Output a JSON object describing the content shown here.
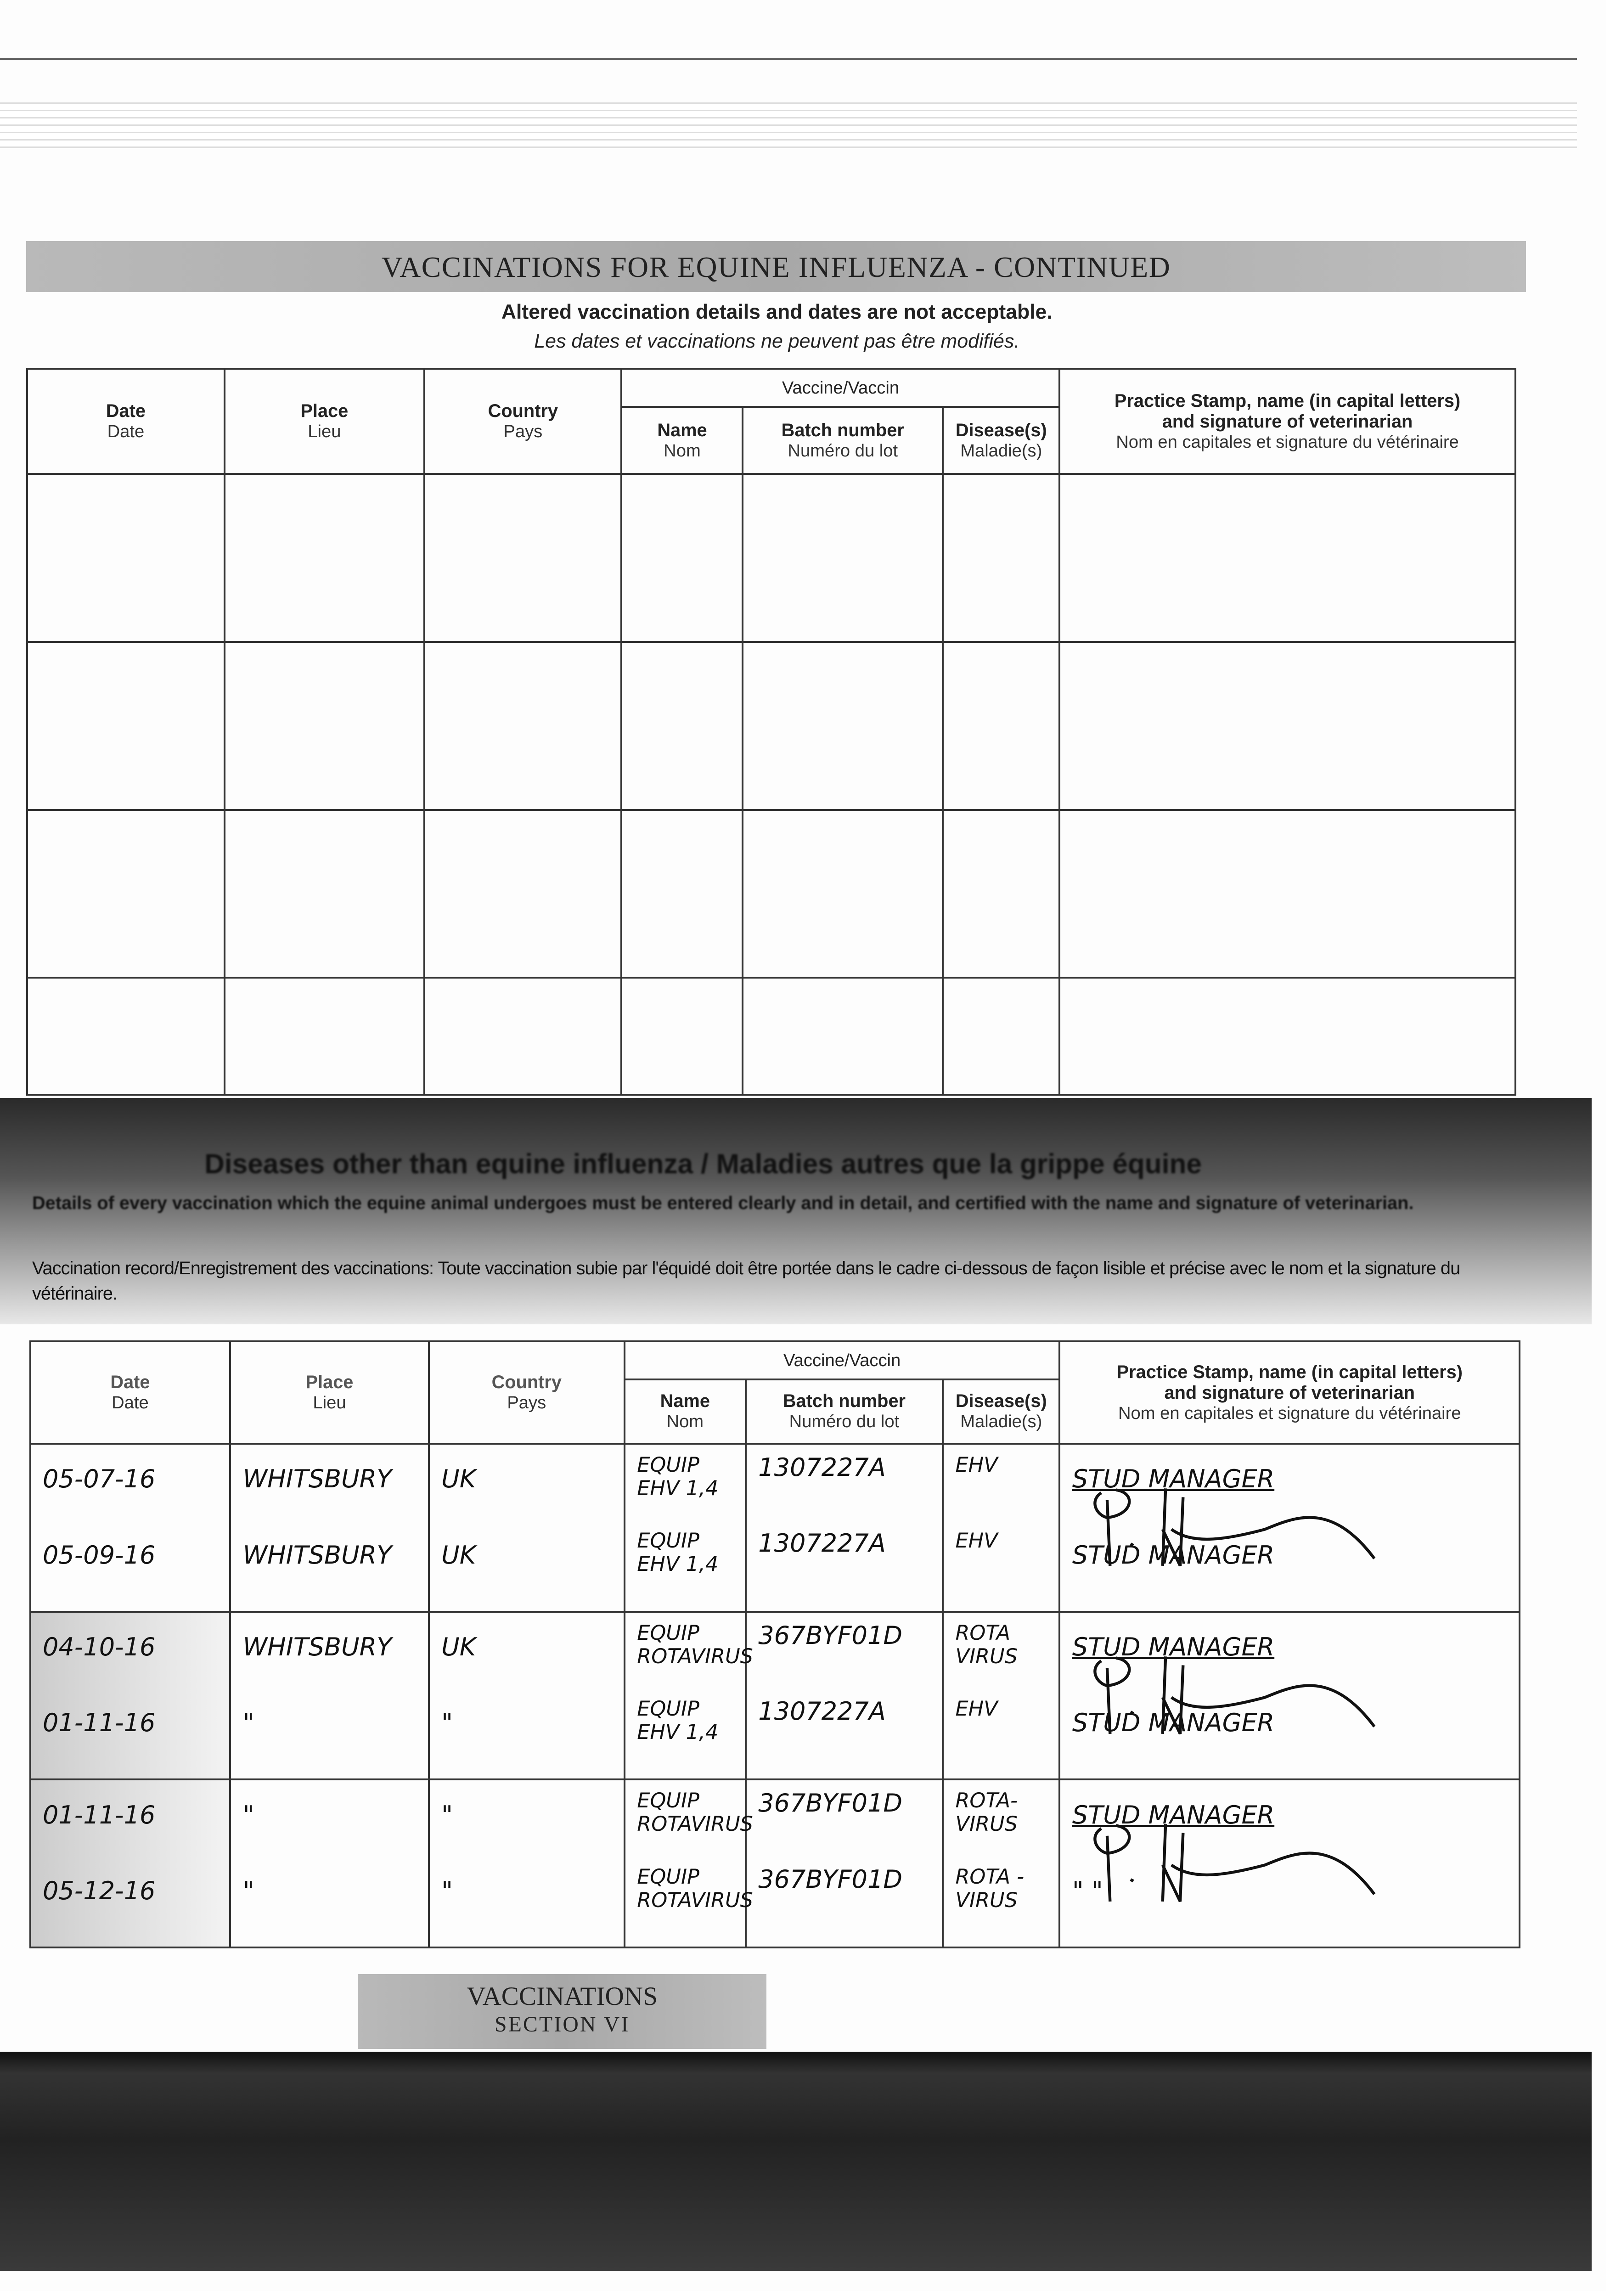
{
  "section_title": "VACCINATIONS FOR EQUINE INFLUENZA - CONTINUED",
  "notice_en": "Altered vaccination details and dates are not acceptable.",
  "notice_fr": "Les dates et vaccinations ne peuvent pas être modifiés.",
  "columns": {
    "date": {
      "en": "Date",
      "fr": "Date"
    },
    "place": {
      "en": "Place",
      "fr": "Lieu"
    },
    "country": {
      "en": "Country",
      "fr": "Pays"
    },
    "vaccine": "Vaccine/Vaccin",
    "name": {
      "en": "Name",
      "fr": "Nom"
    },
    "batch": {
      "en": "Batch number",
      "fr": "Numéro du lot"
    },
    "disease": {
      "en": "Disease(s)",
      "fr": "Maladie(s)"
    },
    "stamp": {
      "en1": "Practice Stamp, name (in capital letters)",
      "en2": "and signature of veterinarian",
      "fr": "Nom en capitales et signature du vétérinaire"
    }
  },
  "section2": {
    "heading": "Diseases other than equine influenza / Maladies autres que la grippe équine",
    "instruction_en": "Details of every vaccination which the equine animal undergoes must be entered clearly and in detail, and certified with the name and signature of veterinarian.",
    "instruction_fr": "Vaccination record/Enregistrement des vaccinations: Toute vaccination subie par l'équidé doit être portée dans le cadre ci-dessous de façon lisible et précise avec le nom et la signature du vétérinaire."
  },
  "records": [
    {
      "entries": [
        {
          "date": "05-07-16",
          "place": "WHITSBURY",
          "country": "UK",
          "name1": "EQUIP",
          "name2": "EHV 1,4",
          "batch": "1307227A",
          "disease1": "EHV",
          "disease2": "",
          "stamp": "STUD MANAGER"
        },
        {
          "date": "05-09-16",
          "place": "WHITSBURY",
          "country": "UK",
          "name1": "EQUIP",
          "name2": "EHV 1,4",
          "batch": "1307227A",
          "disease1": "EHV",
          "disease2": "",
          "stamp": "STUD MANAGER"
        }
      ]
    },
    {
      "entries": [
        {
          "date": "04-10-16",
          "place": "WHITSBURY",
          "country": "UK",
          "name1": "EQUIP",
          "name2": "ROTAVIRUS",
          "batch": "367BYF01D",
          "disease1": "ROTA",
          "disease2": "VIRUS",
          "stamp": "STUD MANAGER"
        },
        {
          "date": "01-11-16",
          "place": "\"",
          "country": "\"",
          "name1": "EQUIP",
          "name2": "EHV 1,4",
          "batch": "1307227A",
          "disease1": "EHV",
          "disease2": "",
          "stamp": "STUD MANAGER"
        }
      ]
    },
    {
      "entries": [
        {
          "date": "01-11-16",
          "place": "\"",
          "country": "\"",
          "name1": "EQUIP",
          "name2": "ROTAVIRUS",
          "batch": "367BYF01D",
          "disease1": "ROTA-",
          "disease2": "VIRUS",
          "stamp": "STUD MANAGER"
        },
        {
          "date": "05-12-16",
          "place": "\"",
          "country": "\"",
          "name1": "EQUIP",
          "name2": "ROTAVIRUS",
          "batch": "367BYF01D",
          "disease1": "ROTA -",
          "disease2": "VIRUS",
          "stamp": "\"        \""
        }
      ]
    }
  ],
  "footer": {
    "line1": "VACCINATIONS",
    "line2": "SECTION VI"
  }
}
